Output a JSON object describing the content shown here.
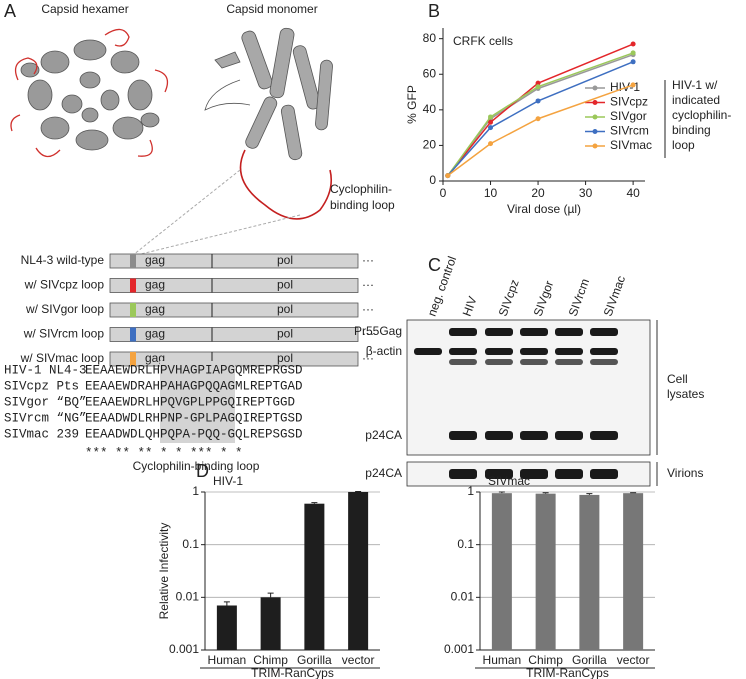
{
  "panel_labels": [
    "A",
    "B",
    "C",
    "D"
  ],
  "panel_a": {
    "structures": [
      "Capsid hexamer",
      "Capsid monomer"
    ],
    "loop_label_lines": [
      "Cyclophilin-",
      "binding loop"
    ],
    "constructs": [
      {
        "label": "NL4-3 wild-type",
        "color": "#8c8c8c"
      },
      {
        "label": "w/ SIVcpz loop",
        "color": "#e3262a"
      },
      {
        "label": "w/ SIVgor loop",
        "color": "#9bc85a"
      },
      {
        "label": "w/ SIVrcm loop",
        "color": "#3e6fc1"
      },
      {
        "label": "w/ SIVmac loop",
        "color": "#f4a340"
      }
    ],
    "genes": [
      "gag",
      "pol"
    ],
    "continuation": "···",
    "alignment": {
      "names": [
        "HIV-1 NL4-3",
        "SIVcpz Pts",
        "SIVgor “BQ”",
        "SIVrcm “NG”",
        "SIVmac 239"
      ],
      "sequences": [
        "EEAAEWDRLHPVHAGPIAPGQMREPRGSD",
        "EEAAEWDRAHPAHAGPQQAGMLREPTGAD",
        "EEAAEWDRLHPQVGPLPPGQIREPTGGD",
        "EEAADWDLRHPNP-GPLPAGQIREPTGSD",
        "EEAADWDLQHPQPA-PQQ-GQLREPSGSD"
      ],
      "conservation": "***  **  **     *    *  ***  *  *",
      "caption": "Cyclophilin-binding loop"
    }
  },
  "chart_data": [
    {
      "type": "line",
      "annotation": "CRFK cells",
      "xlabel": "Viral dose (µl)",
      "ylabel": "% GFP",
      "x": [
        1,
        10,
        20,
        40
      ],
      "series": [
        {
          "name": "HIV-1",
          "color": "#999999",
          "values": [
            3,
            35,
            52,
            71
          ]
        },
        {
          "name": "SIVcpz",
          "color": "#e3262a",
          "values": [
            3,
            33,
            55,
            77
          ]
        },
        {
          "name": "SIVgor",
          "color": "#9bc85a",
          "values": [
            3,
            36,
            53,
            72
          ]
        },
        {
          "name": "SIVrcm",
          "color": "#3e6fc1",
          "values": [
            3,
            30,
            45,
            67
          ]
        },
        {
          "name": "SIVmac",
          "color": "#f4a340",
          "values": [
            3,
            21,
            35,
            54
          ]
        }
      ],
      "legend_title_lines": [
        "HIV-1 w/",
        "indicated",
        "cyclophilin-",
        "binding",
        "loop"
      ],
      "xlim": [
        0,
        42.5
      ],
      "xticks": [
        0,
        10,
        20,
        30,
        40
      ],
      "ylim": [
        0,
        86
      ],
      "yticks": [
        0,
        20,
        40,
        60,
        80
      ],
      "grid": false
    },
    {
      "type": "bar",
      "title": "HIV-1",
      "ylabel": "Relative Infectivity",
      "group_label": "TRIM-RanCyps",
      "categories": [
        "Human",
        "Chimp",
        "Gorilla",
        "vector"
      ],
      "values": [
        0.007,
        0.01,
        0.6,
        1
      ],
      "errors": [
        0.0012,
        0.002,
        0.03,
        0.02
      ],
      "color": "#1e1e1e",
      "log_scale": true,
      "ylim": [
        0.001,
        1
      ],
      "yticks": [
        0.001,
        0.01,
        0.1,
        1
      ],
      "grid": true
    },
    {
      "type": "bar",
      "title": "SIVmac",
      "group_label": "TRIM-RanCyps",
      "categories": [
        "Human",
        "Chimp",
        "Gorilla",
        "vector"
      ],
      "values": [
        0.95,
        0.93,
        0.88,
        0.95
      ],
      "errors": [
        0.05,
        0.04,
        0.05,
        0.02
      ],
      "color": "#777777",
      "log_scale": true,
      "ylim": [
        0.001,
        1
      ],
      "yticks": [
        0.001,
        0.01,
        0.1,
        1
      ],
      "grid": true
    }
  ],
  "panel_c": {
    "lanes": [
      "neg. control",
      "HIV",
      "SIVcpz",
      "SIVgor",
      "SIVrcm",
      "SIVmac"
    ],
    "bands": [
      "Pr55Gag",
      "β-actin",
      "p24CA",
      "p24CA"
    ],
    "fractions": [
      [
        "Cell",
        "lysates"
      ],
      [
        "Virions"
      ]
    ]
  }
}
